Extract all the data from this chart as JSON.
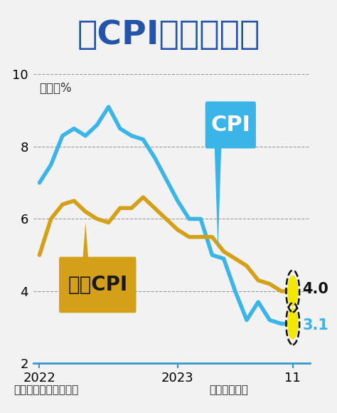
{
  "title": "美CPI年增率變化",
  "subtitle": "單位：%",
  "footer_left": "資料來源：美國勞工部",
  "footer_right": "繪圖：王英嵐",
  "bg_color": "#f2f2f2",
  "cpi_color": "#3bb5e8",
  "core_cpi_color": "#d4a017",
  "title_color": "#2255aa",
  "ylim": [
    2,
    10
  ],
  "yticks": [
    2,
    4,
    6,
    8,
    10
  ],
  "cpi_x": [
    0,
    1,
    2,
    3,
    4,
    5,
    6,
    7,
    8,
    9,
    10,
    11,
    12,
    13,
    14,
    15,
    16,
    17,
    18,
    19,
    20,
    21,
    22
  ],
  "cpi_y": [
    7.0,
    7.5,
    8.3,
    8.5,
    8.3,
    8.6,
    9.1,
    8.5,
    8.3,
    8.2,
    7.7,
    7.1,
    6.5,
    6.0,
    6.0,
    5.0,
    4.9,
    4.0,
    3.2,
    3.7,
    3.2,
    3.1,
    3.1
  ],
  "core_cpi_x": [
    0,
    1,
    2,
    3,
    4,
    5,
    6,
    7,
    8,
    9,
    10,
    11,
    12,
    13,
    14,
    15,
    16,
    17,
    18,
    19,
    20,
    21,
    22
  ],
  "core_cpi_y": [
    5.0,
    6.0,
    6.4,
    6.5,
    6.2,
    6.0,
    5.9,
    6.3,
    6.3,
    6.6,
    6.3,
    6.0,
    5.7,
    5.5,
    5.5,
    5.5,
    5.1,
    4.9,
    4.7,
    4.3,
    4.2,
    4.0,
    4.0
  ],
  "x_tick_positions": [
    0,
    12,
    22
  ],
  "x_tick_labels": [
    "2022",
    "2023",
    "11"
  ],
  "end_label_cpi": "3.1",
  "end_label_core": "4.0",
  "line_width": 4.0
}
